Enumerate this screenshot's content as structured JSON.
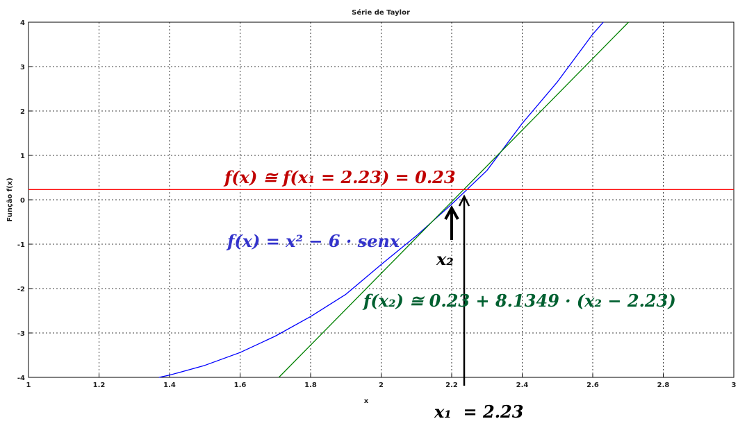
{
  "chart_data": {
    "type": "line",
    "title": "Série de Taylor",
    "xlabel": "x",
    "ylabel": "Função f(x)",
    "xlim": [
      1,
      3
    ],
    "ylim": [
      -4,
      4
    ],
    "grid": true,
    "x_ticks": [
      "1",
      "1.2",
      "1.4",
      "1.6",
      "1.8",
      "2",
      "2.2",
      "2.4",
      "2.6",
      "2.8",
      "3"
    ],
    "y_ticks": [
      "-4",
      "-3",
      "-2",
      "-1",
      "0",
      "1",
      "2",
      "3",
      "4"
    ],
    "series": [
      {
        "function": "x^2 - 6*sin(x)",
        "color": "#0000ff",
        "x": [
          1.37,
          1.4,
          1.5,
          1.6,
          1.7,
          1.8,
          1.9,
          2.0,
          2.1,
          2.2,
          2.3,
          2.4,
          2.5,
          2.6,
          2.63
        ],
        "y": [
          -4.0,
          -3.95,
          -3.73,
          -3.44,
          -3.07,
          -2.63,
          -2.13,
          -1.46,
          -0.81,
          -0.1,
          0.66,
          1.72,
          2.66,
          3.73,
          4.0
        ]
      },
      {
        "function": "0.23 + 8.1349*(x - 2.23)",
        "color": "#008000",
        "x": [
          1.7099,
          2.7015
        ],
        "y": [
          -4.0,
          4.0
        ]
      },
      {
        "function": "0.23",
        "color": "#ff0000",
        "x": [
          1,
          3
        ],
        "y": [
          0.23,
          0.23
        ]
      }
    ],
    "annotations": [
      {
        "text": "f(x) ≅ f(x₁ = 2.23) = 0.23",
        "color": "#c00000"
      },
      {
        "text": "f(x) = x² − 6 · senx",
        "color": "#3333cc"
      },
      {
        "text": "x₂",
        "color": "#000000"
      },
      {
        "text": "f(x₂) ≅ 0.23 + 8.1349 · (x₂ − 2.23)",
        "color": "#006030"
      },
      {
        "text": "x₁  = 2.23",
        "color": "#000000"
      }
    ]
  }
}
